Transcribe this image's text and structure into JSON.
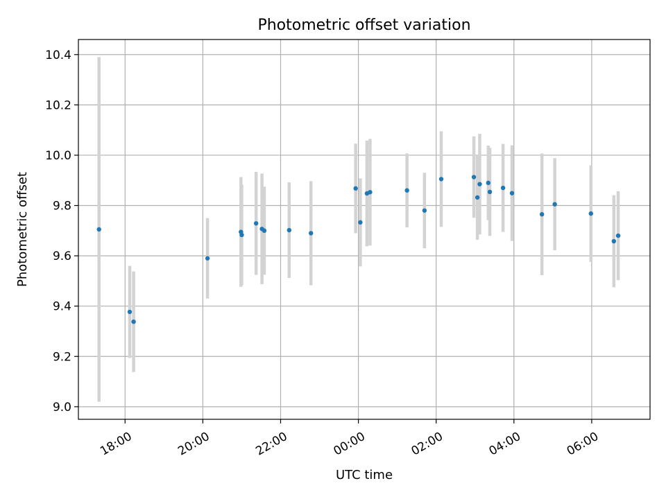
{
  "chart_data": {
    "type": "scatter",
    "title": "Photometric offset variation",
    "xlabel": "UTC time",
    "ylabel": "Photometric offset",
    "x_unit": "hours (UTC, relative to 00:00 of second day)",
    "xlim": [
      -7.2,
      7.5
    ],
    "ylim": [
      8.95,
      10.46
    ],
    "x_ticks": [
      {
        "value": -6,
        "label": "18:00"
      },
      {
        "value": -4,
        "label": "20:00"
      },
      {
        "value": -2,
        "label": "22:00"
      },
      {
        "value": 0,
        "label": "00:00"
      },
      {
        "value": 2,
        "label": "02:00"
      },
      {
        "value": 4,
        "label": "04:00"
      },
      {
        "value": 6,
        "label": "06:00"
      }
    ],
    "y_ticks": [
      {
        "value": 9.0,
        "label": "9.0"
      },
      {
        "value": 9.2,
        "label": "9.2"
      },
      {
        "value": 9.4,
        "label": "9.4"
      },
      {
        "value": 9.6,
        "label": "9.6"
      },
      {
        "value": 9.8,
        "label": "9.8"
      },
      {
        "value": 10.0,
        "label": "10.0"
      },
      {
        "value": 10.2,
        "label": "10.2"
      },
      {
        "value": 10.4,
        "label": "10.4"
      }
    ],
    "grid": true,
    "colors": {
      "point": "#1f77b4",
      "errorbar": "#d3d3d3"
    },
    "points": [
      {
        "x": -6.67,
        "y": 9.705,
        "err": 0.685
      },
      {
        "x": -5.88,
        "y": 9.377,
        "err": 0.183
      },
      {
        "x": -5.78,
        "y": 9.338,
        "err": 0.2
      },
      {
        "x": -3.88,
        "y": 9.59,
        "err": 0.16
      },
      {
        "x": -3.02,
        "y": 9.695,
        "err": 0.218
      },
      {
        "x": -3.0,
        "y": 9.683,
        "err": 0.2
      },
      {
        "x": -2.63,
        "y": 9.729,
        "err": 0.205
      },
      {
        "x": -2.48,
        "y": 9.707,
        "err": 0.22
      },
      {
        "x": -2.42,
        "y": 9.7,
        "err": 0.175
      },
      {
        "x": -1.78,
        "y": 9.702,
        "err": 0.19
      },
      {
        "x": -1.22,
        "y": 9.69,
        "err": 0.207
      },
      {
        "x": -0.07,
        "y": 9.868,
        "err": 0.178
      },
      {
        "x": 0.05,
        "y": 9.733,
        "err": 0.175
      },
      {
        "x": 0.22,
        "y": 9.848,
        "err": 0.21
      },
      {
        "x": 0.3,
        "y": 9.853,
        "err": 0.212
      },
      {
        "x": 1.25,
        "y": 9.86,
        "err": 0.147
      },
      {
        "x": 1.7,
        "y": 9.78,
        "err": 0.15
      },
      {
        "x": 2.13,
        "y": 9.905,
        "err": 0.19
      },
      {
        "x": 2.97,
        "y": 9.913,
        "err": 0.162
      },
      {
        "x": 3.06,
        "y": 9.832,
        "err": 0.168
      },
      {
        "x": 3.12,
        "y": 9.885,
        "err": 0.2
      },
      {
        "x": 3.34,
        "y": 9.89,
        "err": 0.148
      },
      {
        "x": 3.38,
        "y": 9.854,
        "err": 0.175
      },
      {
        "x": 3.72,
        "y": 9.87,
        "err": 0.175
      },
      {
        "x": 3.95,
        "y": 9.849,
        "err": 0.19
      },
      {
        "x": 4.72,
        "y": 9.765,
        "err": 0.242
      },
      {
        "x": 5.05,
        "y": 9.805,
        "err": 0.183
      },
      {
        "x": 5.98,
        "y": 9.768,
        "err": 0.192
      },
      {
        "x": 6.57,
        "y": 9.658,
        "err": 0.183
      },
      {
        "x": 6.68,
        "y": 9.68,
        "err": 0.177
      }
    ]
  }
}
